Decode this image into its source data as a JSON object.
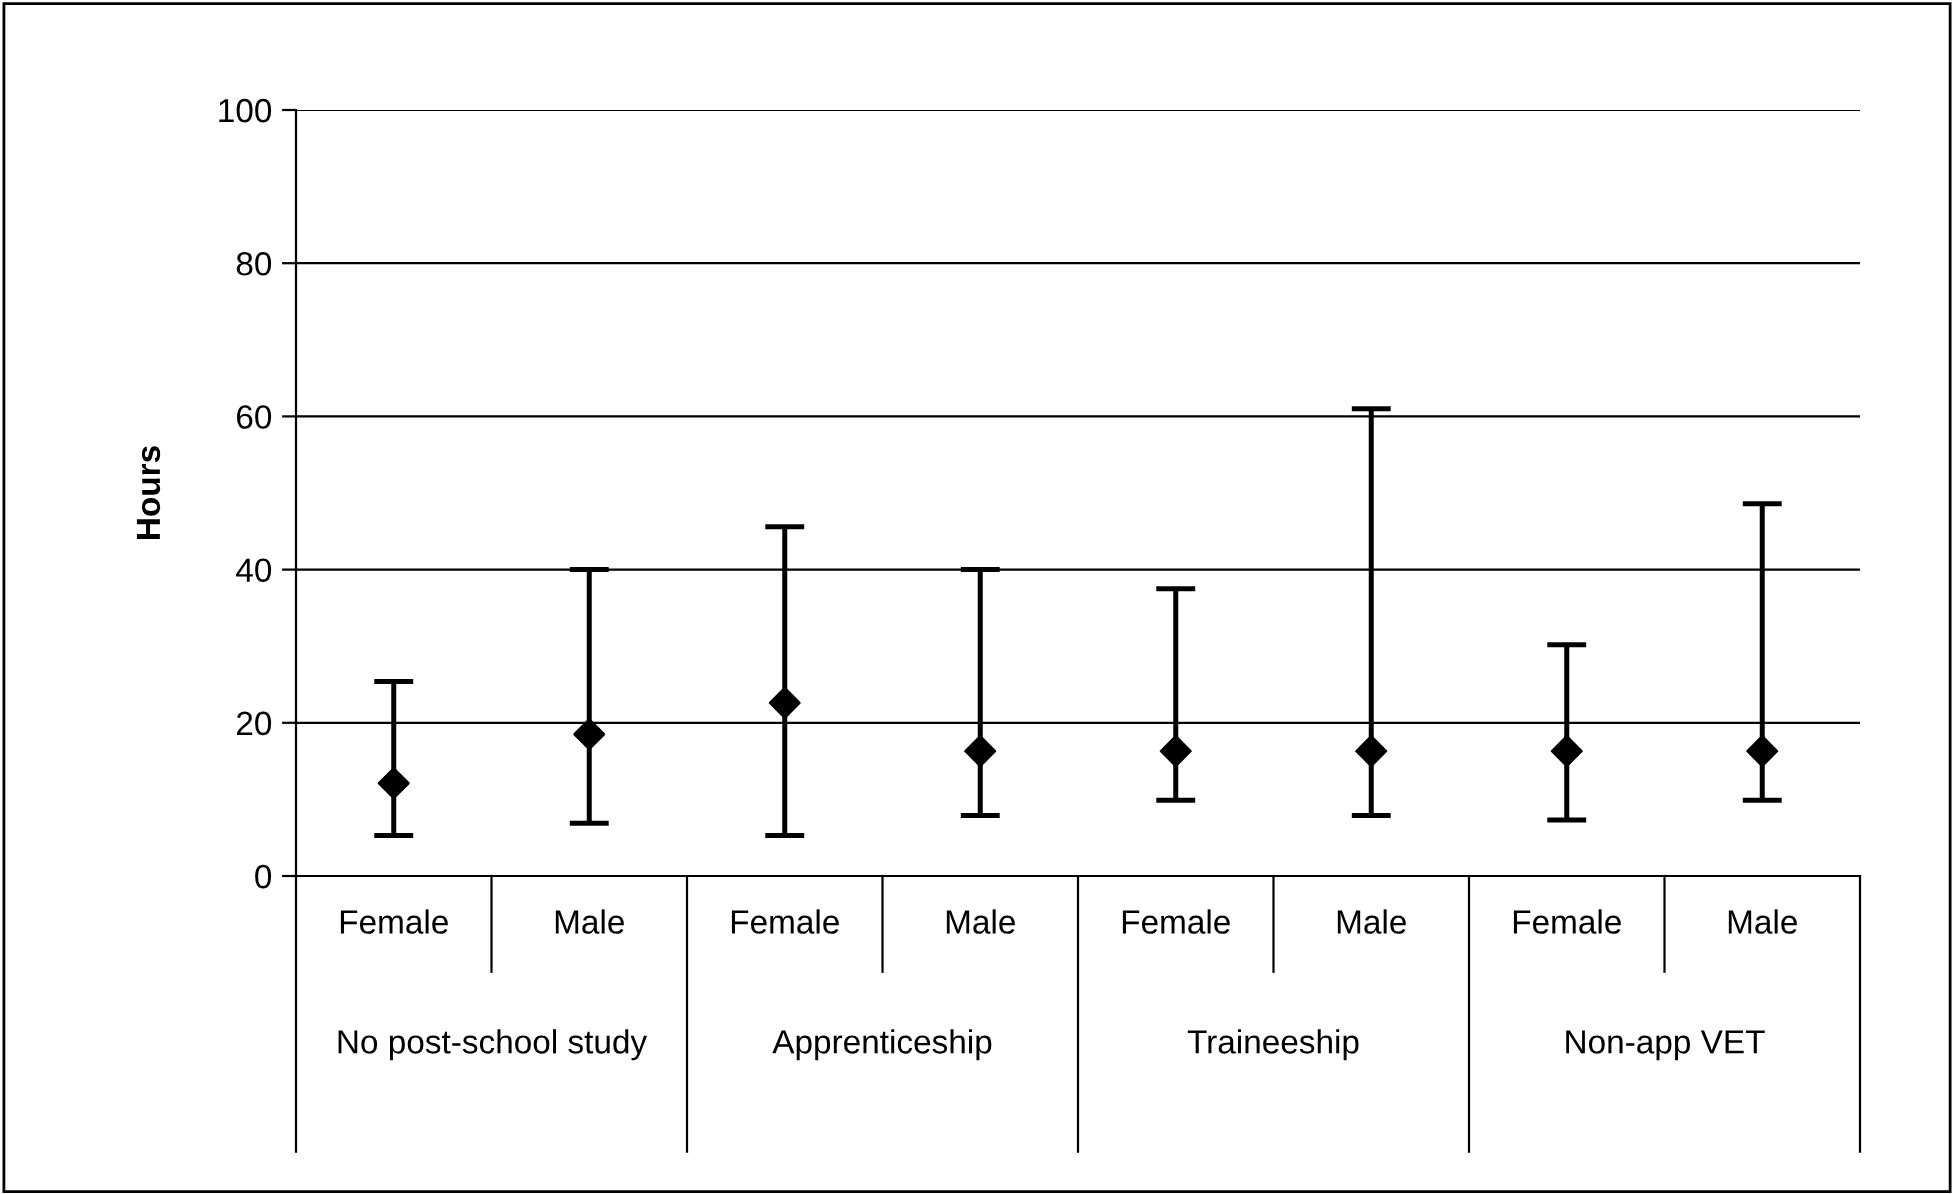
{
  "chart_data": {
    "type": "scatter",
    "ylabel": "Hours",
    "categories": [
      "Female",
      "Male",
      "Female",
      "Male",
      "Female",
      "Male",
      "Female",
      "Male"
    ],
    "values": [
      12.1,
      18.5,
      22.6,
      16.3,
      16.3,
      16.3,
      16.3,
      16.3
    ],
    "errors": [
      [
        5.3,
        25.4
      ],
      [
        6.9,
        40
      ],
      [
        5.3,
        45.6
      ],
      [
        7.9,
        40
      ],
      [
        9.9,
        37.5
      ],
      [
        7.9,
        61
      ],
      [
        7.3,
        30.2
      ],
      [
        9.9,
        48.6
      ]
    ],
    "color": "#000000",
    "marker": "diamond",
    "annotations": [
      "No post-school study",
      "Apprenticeship",
      "Traineeship",
      "Non-app VET"
    ],
    "ylim": [
      0,
      100
    ],
    "yticks": [
      0,
      20,
      40,
      60,
      80,
      100
    ],
    "grid": "y"
  }
}
